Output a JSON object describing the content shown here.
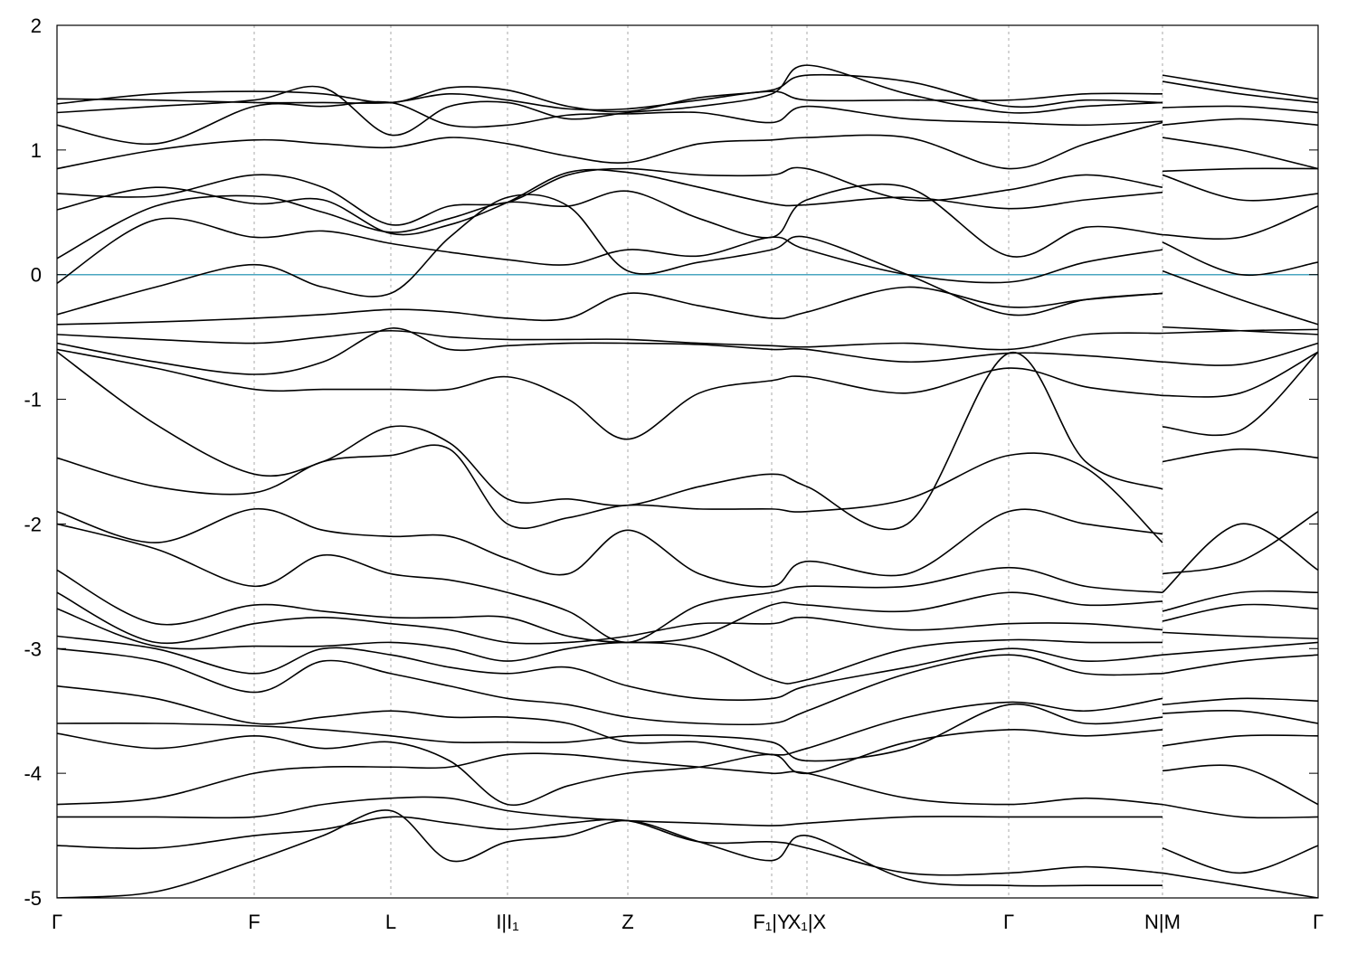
{
  "chart_data": {
    "type": "line",
    "xlim": [
      0,
      13.94
    ],
    "ylim": [
      -5,
      2
    ],
    "yticks": [
      -5,
      -4,
      -3,
      -2,
      -1,
      0,
      1,
      2
    ],
    "xticks": [
      {
        "value": 0,
        "label": "Γ"
      },
      {
        "value": 2.18,
        "label": "F"
      },
      {
        "value": 3.69,
        "label": "L"
      },
      {
        "value": 4.98,
        "label": "I|I₁"
      },
      {
        "value": 6.31,
        "label": "Z"
      },
      {
        "value": 7.9,
        "label": "F₁|Y"
      },
      {
        "value": 8.29,
        "label": "X₁|X"
      },
      {
        "value": 10.52,
        "label": "Γ"
      },
      {
        "value": 12.22,
        "label": "N|M"
      },
      {
        "value": 13.94,
        "label": "Γ"
      }
    ],
    "grid": true,
    "line_color": "#000000",
    "reference_line": 0,
    "reference_color": "#4aa6c0",
    "x": [
      0,
      1.09,
      2.18,
      2.94,
      3.69,
      4.34,
      4.98,
      5.65,
      6.31,
      7.1,
      7.9,
      8.29,
      9.4,
      10.52,
      11.37,
      12.22,
      12.22,
      12.22,
      13.08,
      13.94
    ],
    "series": [
      {
        "values": [
          1.41,
          1.4,
          1.38,
          1.38,
          1.38,
          1.45,
          1.4,
          1.33,
          1.33,
          1.4,
          1.47,
          1.4,
          1.4,
          1.4,
          1.45,
          1.45,
          null,
          1.6,
          1.5,
          1.41
        ]
      },
      {
        "values": [
          1.37,
          1.45,
          1.47,
          1.45,
          1.38,
          1.5,
          1.48,
          1.35,
          1.31,
          1.42,
          1.48,
          1.6,
          1.55,
          1.35,
          1.4,
          1.38,
          null,
          1.55,
          1.45,
          1.38
        ]
      },
      {
        "values": [
          1.3,
          1.35,
          1.4,
          1.5,
          1.12,
          1.35,
          1.38,
          1.25,
          1.3,
          1.35,
          1.45,
          1.68,
          1.45,
          1.3,
          1.35,
          1.38,
          null,
          1.34,
          1.35,
          1.3
        ]
      },
      {
        "values": [
          1.2,
          1.05,
          1.35,
          1.35,
          1.38,
          1.2,
          1.2,
          1.28,
          1.29,
          1.3,
          1.22,
          1.35,
          1.25,
          1.22,
          1.2,
          1.23,
          null,
          1.2,
          1.25,
          1.2
        ]
      },
      {
        "values": [
          0.85,
          1.0,
          1.08,
          1.05,
          1.02,
          1.1,
          1.05,
          0.95,
          0.9,
          1.05,
          1.08,
          1.1,
          1.1,
          0.85,
          1.05,
          1.22,
          null,
          1.1,
          1.0,
          0.85
        ]
      },
      {
        "values": [
          0.65,
          0.63,
          0.8,
          0.7,
          0.4,
          0.55,
          0.58,
          0.8,
          0.85,
          0.8,
          0.8,
          0.85,
          0.6,
          0.68,
          0.8,
          0.7,
          null,
          0.83,
          0.85,
          0.85
        ]
      },
      {
        "values": [
          0.52,
          0.7,
          0.57,
          0.6,
          0.33,
          0.4,
          0.58,
          0.82,
          0.82,
          0.7,
          0.57,
          0.56,
          0.62,
          0.53,
          0.6,
          0.66,
          null,
          0.8,
          0.6,
          0.65
        ]
      },
      {
        "values": [
          0.13,
          0.55,
          0.63,
          0.5,
          0.34,
          0.45,
          0.58,
          0.55,
          0.67,
          0.45,
          0.3,
          0.6,
          0.7,
          0.15,
          0.38,
          0.32,
          null,
          0.32,
          0.3,
          0.55
        ]
      },
      {
        "values": [
          -0.07,
          0.44,
          0.3,
          0.35,
          0.25,
          0.18,
          0.12,
          0.08,
          0.2,
          0.15,
          0.3,
          0.2,
          0.0,
          -0.06,
          0.1,
          0.2,
          null,
          0.26,
          0.0,
          0.1
        ]
      },
      {
        "values": [
          -0.32,
          -0.1,
          0.08,
          -0.1,
          -0.15,
          0.3,
          0.62,
          0.55,
          0.03,
          0.1,
          0.2,
          0.3,
          0.0,
          -0.32,
          -0.2,
          -0.15,
          null,
          0.03,
          -0.2,
          -0.4
        ]
      },
      {
        "values": [
          -0.4,
          -0.38,
          -0.35,
          -0.32,
          -0.28,
          -0.3,
          -0.35,
          -0.35,
          -0.15,
          -0.25,
          -0.35,
          -0.3,
          -0.1,
          -0.26,
          -0.2,
          -0.15,
          null,
          -0.42,
          -0.45,
          -0.48
        ]
      },
      {
        "values": [
          -0.48,
          -0.52,
          -0.55,
          -0.5,
          -0.45,
          -0.5,
          -0.52,
          -0.52,
          -0.52,
          -0.55,
          -0.57,
          -0.58,
          -0.55,
          -0.6,
          -0.48,
          -0.47,
          null,
          -0.47,
          -0.45,
          -0.44
        ]
      },
      {
        "values": [
          -0.55,
          -0.7,
          -0.8,
          -0.7,
          -0.43,
          -0.6,
          -0.57,
          -0.55,
          -0.55,
          -0.56,
          -0.6,
          -0.6,
          -0.7,
          -0.63,
          -0.65,
          -0.7,
          null,
          -0.7,
          -0.72,
          -0.55
        ]
      },
      {
        "values": [
          -0.6,
          -0.75,
          -0.92,
          -0.92,
          -0.92,
          -0.92,
          -0.82,
          -1.0,
          -1.32,
          -0.95,
          -0.85,
          -0.82,
          -0.95,
          -0.75,
          -0.9,
          -0.97,
          null,
          -0.97,
          -0.95,
          -0.62
        ]
      },
      {
        "values": [
          -0.62,
          -1.2,
          -1.6,
          -1.5,
          -1.22,
          -1.35,
          -1.8,
          -1.8,
          -1.85,
          -1.7,
          -1.6,
          -1.7,
          -2.0,
          -0.63,
          -1.5,
          -1.72,
          null,
          -1.22,
          -1.25,
          -0.62
        ]
      },
      {
        "values": [
          -1.47,
          -1.7,
          -1.75,
          -1.5,
          -1.45,
          -1.4,
          -2.0,
          -1.95,
          -1.85,
          -1.88,
          -1.88,
          -1.9,
          -1.8,
          -1.45,
          -1.55,
          -2.15,
          null,
          -1.5,
          -1.4,
          -1.47
        ]
      },
      {
        "values": [
          -1.9,
          -2.15,
          -1.88,
          -2.05,
          -2.1,
          -2.1,
          -2.28,
          -2.4,
          -2.05,
          -2.4,
          -2.5,
          -2.3,
          -2.4,
          -1.9,
          -2.0,
          -2.08,
          null,
          -2.4,
          -2.3,
          -1.9
        ]
      },
      {
        "values": [
          -2.0,
          -2.2,
          -2.5,
          -2.25,
          -2.4,
          -2.45,
          -2.55,
          -2.7,
          -2.95,
          -2.65,
          -2.55,
          -2.5,
          -2.5,
          -2.35,
          -2.5,
          -2.55,
          null,
          -2.55,
          -2.0,
          -2.37
        ]
      },
      {
        "values": [
          -2.37,
          -2.8,
          -2.65,
          -2.7,
          -2.75,
          -2.75,
          -2.75,
          -2.9,
          -2.95,
          -2.9,
          -2.65,
          -2.65,
          -2.7,
          -2.55,
          -2.65,
          -2.62,
          null,
          -2.7,
          -2.55,
          -2.55
        ]
      },
      {
        "values": [
          -2.55,
          -2.95,
          -2.8,
          -2.75,
          -2.8,
          -2.85,
          -2.95,
          -2.95,
          -2.9,
          -2.8,
          -2.8,
          -2.75,
          -2.85,
          -2.8,
          -2.8,
          -2.85,
          null,
          -2.78,
          -2.65,
          -2.68
        ]
      },
      {
        "values": [
          -2.68,
          -2.98,
          -2.98,
          -2.98,
          -2.95,
          -3.0,
          -3.1,
          -3.0,
          -2.95,
          -3.0,
          -3.25,
          -3.25,
          -3.0,
          -2.93,
          -2.95,
          -2.95,
          null,
          -2.87,
          -2.9,
          -2.92
        ]
      },
      {
        "values": [
          -2.9,
          -3.0,
          -3.2,
          -3.0,
          -3.05,
          -3.15,
          -3.2,
          -3.15,
          -3.3,
          -3.4,
          -3.4,
          -3.3,
          -3.15,
          -3.0,
          -3.1,
          -3.05,
          null,
          -3.05,
          -3.0,
          -2.95
        ]
      },
      {
        "values": [
          -3.0,
          -3.1,
          -3.35,
          -3.1,
          -3.2,
          -3.3,
          -3.4,
          -3.45,
          -3.55,
          -3.6,
          -3.6,
          -3.5,
          -3.2,
          -3.05,
          -3.2,
          -3.2,
          null,
          -3.2,
          -3.1,
          -3.05
        ]
      },
      {
        "values": [
          -3.3,
          -3.4,
          -3.6,
          -3.55,
          -3.5,
          -3.55,
          -3.55,
          -3.6,
          -3.75,
          -3.75,
          -3.85,
          -3.8,
          -3.55,
          -3.43,
          -3.5,
          -3.4,
          null,
          -3.45,
          -3.4,
          -3.42
        ]
      },
      {
        "values": [
          -3.6,
          -3.6,
          -3.62,
          -3.65,
          -3.7,
          -3.75,
          -3.75,
          -3.75,
          -3.7,
          -3.7,
          -3.75,
          -3.9,
          -3.8,
          -3.45,
          -3.6,
          -3.55,
          null,
          -3.52,
          -3.5,
          -3.6
        ]
      },
      {
        "values": [
          -3.68,
          -3.8,
          -3.7,
          -3.8,
          -3.75,
          -3.9,
          -4.25,
          -4.1,
          -4.0,
          -3.95,
          -3.85,
          -4.0,
          -3.75,
          -3.65,
          -3.7,
          -3.65,
          null,
          -3.78,
          -3.7,
          -3.7
        ]
      },
      {
        "values": [
          -4.25,
          -4.2,
          -4.0,
          -3.95,
          -3.95,
          -3.95,
          -3.85,
          -3.85,
          -3.9,
          -3.95,
          -4.0,
          -4.0,
          -4.2,
          -4.25,
          -4.2,
          -4.25,
          null,
          -3.98,
          -3.95,
          -4.25
        ]
      },
      {
        "values": [
          -4.35,
          -4.35,
          -4.35,
          -4.25,
          -4.2,
          -4.2,
          -4.3,
          -4.35,
          -4.38,
          -4.4,
          -4.42,
          -4.4,
          -4.35,
          -4.35,
          -4.35,
          -4.35,
          null,
          -4.25,
          -4.35,
          -4.35
        ]
      },
      {
        "values": [
          -4.58,
          -4.6,
          -4.5,
          -4.45,
          -4.35,
          -4.4,
          -4.45,
          -4.4,
          -4.38,
          -4.55,
          -4.55,
          -4.6,
          -4.8,
          -4.8,
          -4.75,
          -4.8,
          null,
          -4.6,
          -4.8,
          -4.58
        ]
      },
      {
        "values": [
          -5.0,
          -4.95,
          -4.7,
          -4.5,
          -4.3,
          -4.7,
          -4.55,
          -4.5,
          -4.38,
          -4.55,
          -4.7,
          -4.5,
          -4.85,
          -4.9,
          -4.9,
          -4.9,
          null,
          -4.8,
          -4.9,
          -5.0
        ]
      }
    ]
  }
}
